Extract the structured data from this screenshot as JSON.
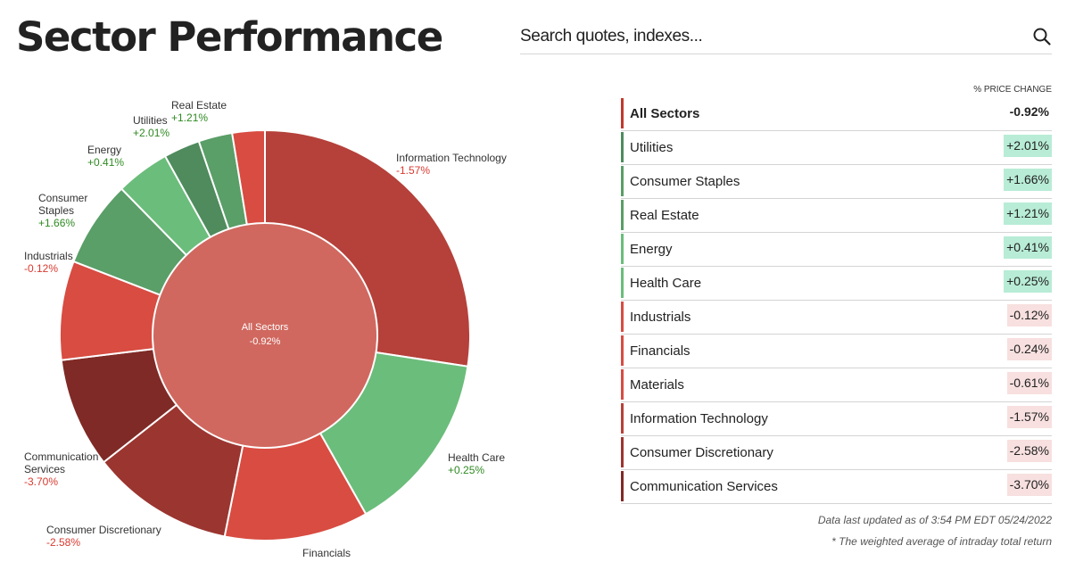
{
  "header": {
    "title": "Sector Performance",
    "search_placeholder": "Search quotes, indexes..."
  },
  "colors": {
    "dark_red": "#7f2a26",
    "mid_red": "#9b3530",
    "red": "#b5413a",
    "bright_red": "#d84c42",
    "center_red": "#d0685f",
    "green_light": "#6bbd7b",
    "green_mid": "#5a9e68",
    "green_dark": "#4f8b5d",
    "pos_bg": "#b8ecd6",
    "neg_bg": "#f7e0df",
    "pos_text": "#2f8a22",
    "neg_text": "#d93a30"
  },
  "chart_data": {
    "type": "pie",
    "center": {
      "label": "All Sectors",
      "value": "-0.92%"
    },
    "slices": [
      {
        "name": "Information Technology",
        "value": 27.8,
        "change": "-1.57%",
        "color": "#b5413a"
      },
      {
        "name": "Health Care",
        "value": 14.6,
        "change": "+0.25%",
        "color": "#6bbd7b"
      },
      {
        "name": "Financials",
        "value": 11.5,
        "change": "-0.24%",
        "color": "#d84c42"
      },
      {
        "name": "Consumer Discretionary",
        "value": 11.4,
        "change": "-2.58%",
        "color": "#9b3530"
      },
      {
        "name": "Communication Services",
        "value": 8.8,
        "change": "-3.70%",
        "color": "#7f2a26"
      },
      {
        "name": "Industrials",
        "value": 7.9,
        "change": "-0.12%",
        "color": "#d84c42"
      },
      {
        "name": "Consumer Staples",
        "value": 6.9,
        "change": "+1.66%",
        "color": "#5a9e68"
      },
      {
        "name": "Energy",
        "value": 4.3,
        "change": "+0.41%",
        "color": "#6bbd7b"
      },
      {
        "name": "Utilities",
        "value": 2.9,
        "change": "+2.01%",
        "color": "#4f8b5d"
      },
      {
        "name": "Real Estate",
        "value": 2.7,
        "change": "+1.21%",
        "color": "#5a9e68"
      },
      {
        "name": "Materials",
        "value": 2.6,
        "change": "-0.61%",
        "color": "#d84c42"
      }
    ]
  },
  "table": {
    "header": "% PRICE CHANGE",
    "rows": [
      {
        "name": "All Sectors",
        "change": "-0.92%",
        "bar": "#c0392b",
        "bg": "transparent"
      },
      {
        "name": "Utilities",
        "change": "+2.01%",
        "bar": "#4f8b5d",
        "bg": "#b8ecd6"
      },
      {
        "name": "Consumer Staples",
        "change": "+1.66%",
        "bar": "#5a9e68",
        "bg": "#b8ecd6"
      },
      {
        "name": "Real Estate",
        "change": "+1.21%",
        "bar": "#5a9e68",
        "bg": "#b8ecd6"
      },
      {
        "name": "Energy",
        "change": "+0.41%",
        "bar": "#6bbd7b",
        "bg": "#b8ecd6"
      },
      {
        "name": "Health Care",
        "change": "+0.25%",
        "bar": "#6bbd7b",
        "bg": "#b8ecd6"
      },
      {
        "name": "Industrials",
        "change": "-0.12%",
        "bar": "#d84c42",
        "bg": "#f7e0df"
      },
      {
        "name": "Financials",
        "change": "-0.24%",
        "bar": "#d84c42",
        "bg": "#f7e0df"
      },
      {
        "name": "Materials",
        "change": "-0.61%",
        "bar": "#d84c42",
        "bg": "#f7e0df"
      },
      {
        "name": "Information Technology",
        "change": "-1.57%",
        "bar": "#b5413a",
        "bg": "#f7e0df"
      },
      {
        "name": "Consumer Discretionary",
        "change": "-2.58%",
        "bar": "#9b3530",
        "bg": "#f7e0df"
      },
      {
        "name": "Communication Services",
        "change": "-3.70%",
        "bar": "#7f2a26",
        "bg": "#f7e0df"
      }
    ]
  },
  "footer": {
    "updated": "Data last updated as of 3:54 PM EDT 05/24/2022",
    "footnote": "* The weighted average of intraday total return"
  }
}
